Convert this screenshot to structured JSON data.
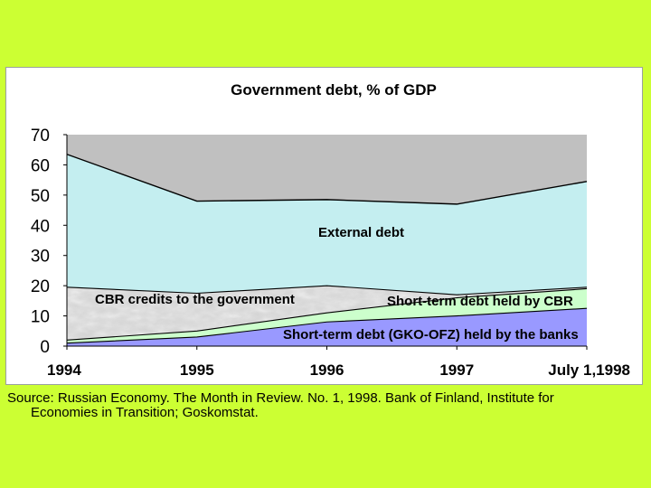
{
  "source": {
    "line1": "Source: Russian Economy. The Month in Review. No. 1, 1998. Bank of Finland, Institute for",
    "line2": "Economies in Transition; Goskomstat."
  },
  "colors": {
    "page_background": "#ccff33",
    "plot_background": "#c0c0c0",
    "external_debt": "#c4eef0",
    "cbr_credits": "#d6d6d6",
    "short_term_cbr": "#ccffcc",
    "short_term_banks": "#9999ff"
  },
  "chart_data": {
    "type": "area",
    "stacked": true,
    "title": "Government debt, % of GDP",
    "xlabel": "",
    "ylabel": "",
    "categories": [
      "1994",
      "1995",
      "1996",
      "1997",
      "July 1,1998"
    ],
    "ylim": [
      0,
      70
    ],
    "yticks": [
      0,
      10,
      20,
      30,
      40,
      50,
      60,
      70
    ],
    "grid": false,
    "series": [
      {
        "name": "Short-term debt (GKO-OFZ) held by the banks",
        "values": [
          1,
          3,
          8,
          10,
          12.5
        ]
      },
      {
        "name": "Short-term debt held by CBR",
        "values": [
          1,
          2,
          3,
          6,
          6.5
        ]
      },
      {
        "name": "CBR credits to the government",
        "values": [
          17.5,
          12.5,
          9,
          1,
          0.5
        ]
      },
      {
        "name": "External debt",
        "values": [
          44,
          30.5,
          28.5,
          30,
          35
        ]
      }
    ],
    "totals": [
      63.5,
      48.5,
      48.5,
      47,
      54.5
    ]
  }
}
